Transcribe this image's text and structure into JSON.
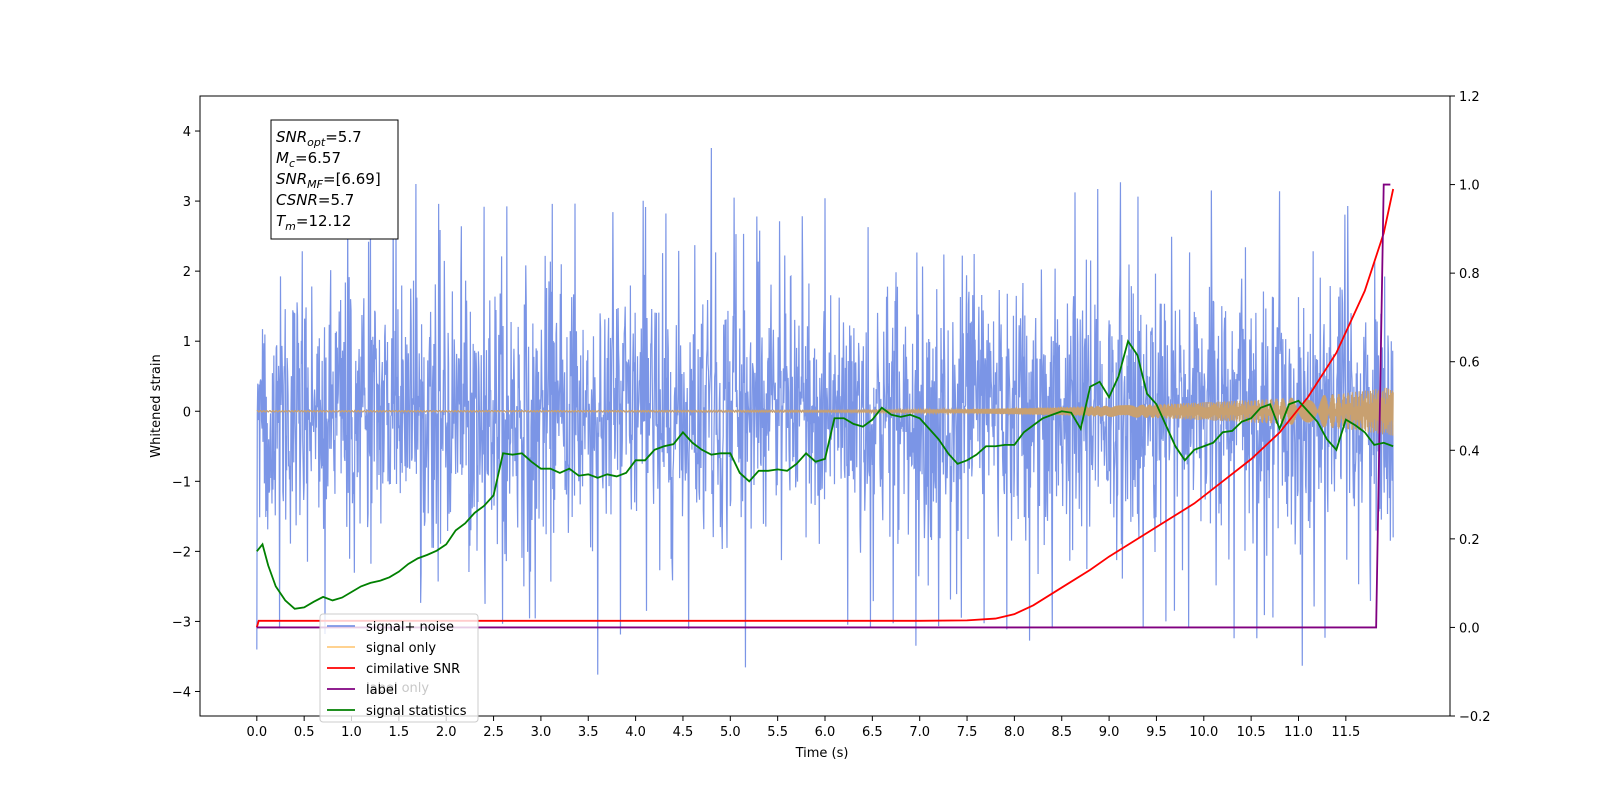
{
  "chart_data": {
    "type": "line",
    "xlabel": "Time (s)",
    "ylabel": "Whitened strain",
    "xlim": [
      -0.6,
      12.6
    ],
    "ylim": [
      -4.35,
      4.5
    ],
    "ylim_right": [
      -0.2,
      1.2
    ],
    "x_ticks": [
      "0.0",
      "0.5",
      "1.0",
      "1.5",
      "2.0",
      "2.5",
      "3.0",
      "3.5",
      "4.0",
      "4.5",
      "5.0",
      "5.5",
      "6.0",
      "6.5",
      "7.0",
      "7.5",
      "8.0",
      "8.5",
      "9.0",
      "9.5",
      "10.0",
      "10.5",
      "11.0",
      "11.5"
    ],
    "y_ticks_left": [
      "4",
      "3",
      "2",
      "1",
      "0",
      "−1",
      "−2",
      "−3",
      "−4"
    ],
    "y_ticks_right": [
      "1.2",
      "1.0",
      "0.8",
      "0.6",
      "0.4",
      "0.2",
      "0.0",
      "−0.2"
    ],
    "grid": false,
    "legend_position": "lower-left",
    "info_box": {
      "lines": [
        {
          "base": "SNR",
          "sub": "opt",
          "value": "=5.7"
        },
        {
          "base": "M",
          "sub": "c",
          "value": "=6.57"
        },
        {
          "base": "SNR",
          "sub": "MF",
          "value": "=[6.69]"
        },
        {
          "base": "CSNR",
          "sub": "",
          "value": "=5.7"
        },
        {
          "base": "T",
          "sub": "m",
          "value": "=12.12"
        }
      ]
    },
    "series": [
      {
        "name": "signal+ noise",
        "axis": "left",
        "color": "#7b95e6",
        "style": "noise",
        "x_range": [
          0.0,
          12.0
        ],
        "envelope_low": -2.0,
        "envelope_high": 2.0,
        "peaks_high": [
          [
            0.05,
            2.3
          ],
          [
            0.3,
            2.5
          ],
          [
            0.55,
            2.2
          ],
          [
            0.8,
            2.6
          ],
          [
            1.0,
            2.9
          ],
          [
            1.25,
            2.7
          ],
          [
            1.5,
            3.1
          ],
          [
            1.75,
            3.3
          ],
          [
            2.0,
            2.8
          ],
          [
            2.2,
            2.6
          ],
          [
            2.45,
            3.0
          ],
          [
            2.7,
            2.9
          ],
          [
            3.0,
            3.2
          ],
          [
            3.25,
            2.7
          ],
          [
            3.5,
            3.3
          ],
          [
            3.75,
            3.0
          ],
          [
            4.0,
            3.1
          ],
          [
            4.25,
            2.8
          ],
          [
            4.55,
            2.9
          ],
          [
            4.9,
            4.1
          ],
          [
            5.1,
            2.6
          ],
          [
            5.3,
            2.8
          ],
          [
            5.55,
            2.7
          ],
          [
            5.8,
            2.8
          ],
          [
            6.05,
            3.1
          ],
          [
            6.3,
            3.0
          ],
          [
            6.55,
            2.9
          ],
          [
            6.75,
            3.6
          ],
          [
            7.0,
            3.2
          ],
          [
            7.25,
            3.0
          ],
          [
            7.45,
            3.1
          ],
          [
            7.7,
            2.9
          ],
          [
            7.95,
            3.2
          ],
          [
            8.2,
            3.1
          ],
          [
            8.45,
            3.2
          ],
          [
            8.7,
            3.1
          ],
          [
            8.95,
            3.2
          ],
          [
            9.2,
            3.3
          ],
          [
            9.45,
            3.0
          ],
          [
            9.7,
            3.3
          ],
          [
            9.95,
            3.1
          ],
          [
            10.2,
            3.2
          ],
          [
            10.45,
            3.0
          ],
          [
            10.7,
            3.1
          ],
          [
            10.95,
            3.2
          ],
          [
            11.2,
            3.1
          ],
          [
            11.45,
            3.0
          ],
          [
            11.65,
            2.8
          ],
          [
            11.85,
            2.5
          ],
          [
            12.0,
            1.6
          ]
        ],
        "peaks_low": [
          [
            0.08,
            -3.4
          ],
          [
            0.4,
            -2.8
          ],
          [
            0.7,
            -3.2
          ],
          [
            1.0,
            -2.9
          ],
          [
            1.3,
            -3.3
          ],
          [
            1.6,
            -3.1
          ],
          [
            1.9,
            -2.6
          ],
          [
            2.2,
            -3.0
          ],
          [
            2.45,
            -3.3
          ],
          [
            2.75,
            -2.8
          ],
          [
            3.0,
            -3.1
          ],
          [
            3.3,
            -3.0
          ],
          [
            3.55,
            -3.9
          ],
          [
            3.8,
            -3.2
          ],
          [
            4.1,
            -3.1
          ],
          [
            4.4,
            -3.0
          ],
          [
            4.7,
            -3.2
          ],
          [
            5.0,
            -3.3
          ],
          [
            5.2,
            -3.9
          ],
          [
            5.5,
            -3.1
          ],
          [
            5.8,
            -3.2
          ],
          [
            6.1,
            -3.0
          ],
          [
            6.4,
            -3.1
          ],
          [
            6.7,
            -3.0
          ],
          [
            7.0,
            -3.4
          ],
          [
            7.3,
            -2.9
          ],
          [
            7.6,
            -3.0
          ],
          [
            7.9,
            -3.1
          ],
          [
            8.2,
            -3.3
          ],
          [
            8.5,
            -3.0
          ],
          [
            8.8,
            -3.2
          ],
          [
            9.0,
            -3.3
          ],
          [
            9.3,
            -3.1
          ],
          [
            9.6,
            -3.0
          ],
          [
            9.9,
            -3.1
          ],
          [
            10.2,
            -3.2
          ],
          [
            10.5,
            -3.3
          ],
          [
            10.8,
            -3.0
          ],
          [
            11.0,
            -3.7
          ],
          [
            11.3,
            -3.2
          ],
          [
            11.6,
            -2.9
          ],
          [
            11.85,
            -2.6
          ],
          [
            12.0,
            -1.8
          ]
        ]
      },
      {
        "name": "signal only",
        "axis": "left",
        "color": "#c8a070",
        "style": "chirp",
        "x_range": [
          0.0,
          12.0
        ],
        "envelope": [
          [
            0.0,
            0.01
          ],
          [
            3.0,
            0.01
          ],
          [
            6.0,
            0.015
          ],
          [
            7.5,
            0.03
          ],
          [
            8.5,
            0.06
          ],
          [
            9.5,
            0.1
          ],
          [
            10.5,
            0.16
          ],
          [
            11.0,
            0.2
          ],
          [
            11.5,
            0.26
          ],
          [
            12.0,
            0.35
          ]
        ]
      },
      {
        "name": "cimilative SNR",
        "axis": "right",
        "color": "#ff0000",
        "style": "line",
        "points": [
          [
            0.0,
            0.0
          ],
          [
            0.02,
            0.015
          ],
          [
            1.0,
            0.015
          ],
          [
            3.0,
            0.015
          ],
          [
            5.0,
            0.015
          ],
          [
            7.0,
            0.015
          ],
          [
            7.5,
            0.016
          ],
          [
            7.8,
            0.02
          ],
          [
            8.0,
            0.03
          ],
          [
            8.2,
            0.05
          ],
          [
            8.5,
            0.09
          ],
          [
            8.8,
            0.13
          ],
          [
            9.0,
            0.16
          ],
          [
            9.3,
            0.2
          ],
          [
            9.6,
            0.24
          ],
          [
            9.9,
            0.28
          ],
          [
            10.2,
            0.33
          ],
          [
            10.5,
            0.38
          ],
          [
            10.8,
            0.44
          ],
          [
            11.1,
            0.52
          ],
          [
            11.4,
            0.62
          ],
          [
            11.7,
            0.76
          ],
          [
            11.9,
            0.89
          ],
          [
            12.0,
            0.99
          ]
        ]
      },
      {
        "name": "label",
        "axis": "right",
        "color": "#800080",
        "style": "line",
        "points": [
          [
            0.0,
            0.0
          ],
          [
            11.82,
            0.0
          ],
          [
            11.9,
            1.0
          ],
          [
            11.97,
            1.0
          ]
        ]
      },
      {
        "name": "signal statistics",
        "axis": "left",
        "color": "#008000",
        "style": "line",
        "points": [
          [
            0.0,
            -2.0
          ],
          [
            0.06,
            -1.9
          ],
          [
            0.12,
            -2.2
          ],
          [
            0.2,
            -2.5
          ],
          [
            0.3,
            -2.7
          ],
          [
            0.4,
            -2.82
          ],
          [
            0.5,
            -2.8
          ],
          [
            0.6,
            -2.72
          ],
          [
            0.7,
            -2.65
          ],
          [
            0.8,
            -2.7
          ],
          [
            0.9,
            -2.66
          ],
          [
            1.0,
            -2.58
          ],
          [
            1.1,
            -2.5
          ],
          [
            1.2,
            -2.45
          ],
          [
            1.3,
            -2.42
          ],
          [
            1.4,
            -2.37
          ],
          [
            1.5,
            -2.29
          ],
          [
            1.6,
            -2.18
          ],
          [
            1.7,
            -2.1
          ],
          [
            1.8,
            -2.05
          ],
          [
            1.9,
            -1.99
          ],
          [
            2.0,
            -1.9
          ],
          [
            2.1,
            -1.7
          ],
          [
            2.2,
            -1.6
          ],
          [
            2.3,
            -1.45
          ],
          [
            2.4,
            -1.35
          ],
          [
            2.5,
            -1.2
          ],
          [
            2.55,
            -0.9
          ],
          [
            2.6,
            -0.6
          ],
          [
            2.7,
            -0.62
          ],
          [
            2.8,
            -0.6
          ],
          [
            2.9,
            -0.72
          ],
          [
            3.0,
            -0.82
          ],
          [
            3.1,
            -0.82
          ],
          [
            3.2,
            -0.88
          ],
          [
            3.3,
            -0.82
          ],
          [
            3.4,
            -0.92
          ],
          [
            3.5,
            -0.9
          ],
          [
            3.6,
            -0.95
          ],
          [
            3.7,
            -0.9
          ],
          [
            3.8,
            -0.93
          ],
          [
            3.9,
            -0.88
          ],
          [
            4.0,
            -0.7
          ],
          [
            4.1,
            -0.7
          ],
          [
            4.2,
            -0.55
          ],
          [
            4.3,
            -0.5
          ],
          [
            4.4,
            -0.47
          ],
          [
            4.5,
            -0.3
          ],
          [
            4.6,
            -0.45
          ],
          [
            4.7,
            -0.55
          ],
          [
            4.8,
            -0.62
          ],
          [
            4.9,
            -0.6
          ],
          [
            5.0,
            -0.6
          ],
          [
            5.1,
            -0.88
          ],
          [
            5.2,
            -1.0
          ],
          [
            5.3,
            -0.85
          ],
          [
            5.4,
            -0.85
          ],
          [
            5.5,
            -0.83
          ],
          [
            5.6,
            -0.85
          ],
          [
            5.7,
            -0.75
          ],
          [
            5.8,
            -0.6
          ],
          [
            5.9,
            -0.72
          ],
          [
            6.0,
            -0.68
          ],
          [
            6.1,
            -0.1
          ],
          [
            6.2,
            -0.1
          ],
          [
            6.3,
            -0.18
          ],
          [
            6.4,
            -0.22
          ],
          [
            6.5,
            -0.12
          ],
          [
            6.6,
            0.05
          ],
          [
            6.7,
            -0.05
          ],
          [
            6.8,
            -0.08
          ],
          [
            6.9,
            -0.05
          ],
          [
            7.0,
            -0.1
          ],
          [
            7.1,
            -0.25
          ],
          [
            7.2,
            -0.4
          ],
          [
            7.3,
            -0.6
          ],
          [
            7.4,
            -0.75
          ],
          [
            7.5,
            -0.7
          ],
          [
            7.6,
            -0.62
          ],
          [
            7.7,
            -0.5
          ],
          [
            7.8,
            -0.5
          ],
          [
            7.9,
            -0.48
          ],
          [
            8.0,
            -0.48
          ],
          [
            8.1,
            -0.3
          ],
          [
            8.2,
            -0.2
          ],
          [
            8.3,
            -0.1
          ],
          [
            8.4,
            -0.05
          ],
          [
            8.5,
            0.0
          ],
          [
            8.6,
            -0.02
          ],
          [
            8.7,
            -0.25
          ],
          [
            8.8,
            0.35
          ],
          [
            8.9,
            0.42
          ],
          [
            9.0,
            0.2
          ],
          [
            9.1,
            0.5
          ],
          [
            9.2,
            1.0
          ],
          [
            9.3,
            0.8
          ],
          [
            9.4,
            0.25
          ],
          [
            9.5,
            0.1
          ],
          [
            9.6,
            -0.2
          ],
          [
            9.7,
            -0.5
          ],
          [
            9.8,
            -0.7
          ],
          [
            9.9,
            -0.55
          ],
          [
            10.0,
            -0.5
          ],
          [
            10.1,
            -0.45
          ],
          [
            10.2,
            -0.3
          ],
          [
            10.3,
            -0.28
          ],
          [
            10.4,
            -0.15
          ],
          [
            10.5,
            -0.1
          ],
          [
            10.6,
            0.05
          ],
          [
            10.7,
            0.1
          ],
          [
            10.8,
            -0.25
          ],
          [
            10.9,
            0.1
          ],
          [
            11.0,
            0.15
          ],
          [
            11.1,
            0.0
          ],
          [
            11.2,
            -0.15
          ],
          [
            11.3,
            -0.4
          ],
          [
            11.4,
            -0.55
          ],
          [
            11.5,
            -0.12
          ],
          [
            11.6,
            -0.2
          ],
          [
            11.7,
            -0.3
          ],
          [
            11.8,
            -0.48
          ],
          [
            11.9,
            -0.45
          ],
          [
            12.0,
            -0.5
          ]
        ]
      }
    ],
    "legend": [
      {
        "name": "signal+ noise",
        "color": "#7b95e6"
      },
      {
        "name": "signal only",
        "color": "#ffcc80"
      },
      {
        "name": "cimilative SNR",
        "color": "#ff0000"
      },
      {
        "name": "label",
        "color": "#800080"
      },
      {
        "name": "signal statistics",
        "color": "#008000"
      }
    ],
    "legend_ghost_labels": [
      "label only"
    ]
  }
}
